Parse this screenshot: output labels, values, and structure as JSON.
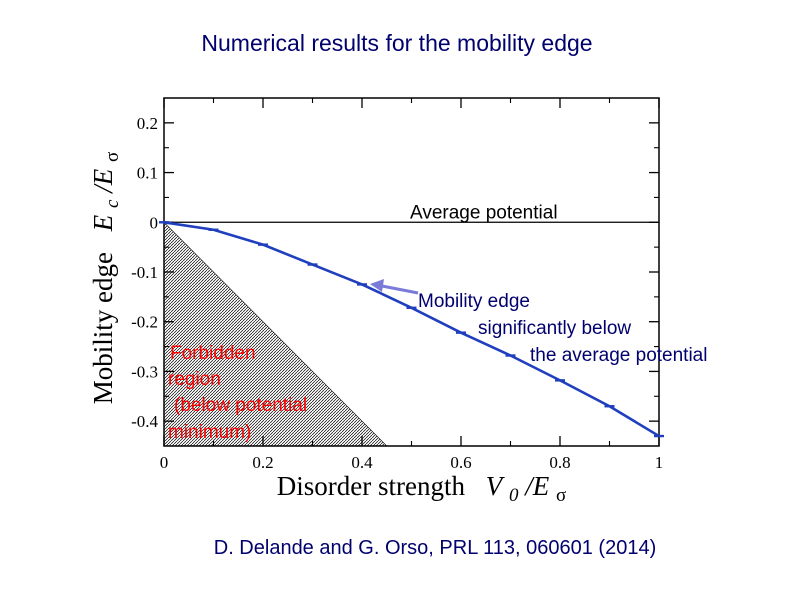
{
  "slide": {
    "title": "Numerical results for the mobility edge",
    "citation": "D. Delande and G. Orso, PRL 113, 060601 (2014)"
  },
  "chart_data": {
    "type": "line",
    "xlabel_text": "Disorder strength",
    "xlabel_symbol": "V",
    "xlabel_sub": "0",
    "xlabel_slash": "/E",
    "xlabel_sigma": "σ",
    "ylabel_text": "Mobility edge",
    "ylabel_symbol": "E",
    "ylabel_sub": "c",
    "ylabel_slash": "/E",
    "ylabel_sigma": "σ",
    "xlim": [
      0,
      1
    ],
    "ylim": [
      -0.45,
      0.25
    ],
    "xticks": [
      0,
      0.2,
      0.4,
      0.6,
      0.8,
      1
    ],
    "xtick_labels": [
      "0",
      "0.2",
      "0.4",
      "0.6",
      "0.8",
      "1"
    ],
    "yticks": [
      0.2,
      0.1,
      0,
      -0.1,
      -0.2,
      -0.3,
      -0.4
    ],
    "ytick_labels": [
      "0.2",
      "0.1",
      "0",
      "-0.1",
      "-0.2",
      "-0.3",
      "-0.4"
    ],
    "series": [
      {
        "x": [
          0,
          0.1,
          0.2,
          0.3,
          0.4,
          0.5,
          0.6,
          0.7,
          0.8,
          0.9,
          1.0
        ],
        "y": [
          0,
          -0.015,
          -0.045,
          -0.085,
          -0.125,
          -0.172,
          -0.222,
          -0.268,
          -0.318,
          -0.37,
          -0.43
        ],
        "color": "#1f3fbf"
      }
    ],
    "reference_line": {
      "y": 0
    },
    "forbidden_region": {
      "x_at_bottom": 0.45
    },
    "annotations": {
      "average_potential": "Average potential",
      "mobility_edge_lines": [
        "Mobility edge",
        "significantly below",
        "the average potential"
      ],
      "forbidden_lines": [
        "Forbidden",
        "region",
        "(below potential",
        "minimum)"
      ]
    },
    "annotation_colors": {
      "mobility_edge": "#00006e",
      "forbidden": "#ff0000",
      "arrow": "#7a7ad8"
    }
  }
}
